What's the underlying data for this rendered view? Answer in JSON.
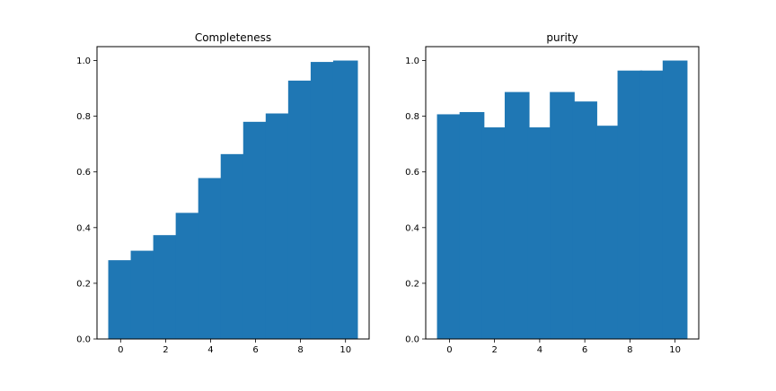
{
  "chart_data": [
    {
      "type": "bar",
      "title": "Completeness",
      "xlabel": "",
      "ylabel": "",
      "x": [
        0,
        1,
        2,
        3,
        4,
        5,
        6,
        7,
        8,
        9,
        10
      ],
      "values": [
        0.283,
        0.317,
        0.373,
        0.453,
        0.578,
        0.664,
        0.78,
        0.81,
        0.928,
        0.995,
        1.0
      ],
      "bar_width": 1.1,
      "xlim": [
        -1.05,
        11.05
      ],
      "ylim": [
        0,
        1.05
      ],
      "xticks": [
        0,
        2,
        4,
        6,
        8,
        10
      ],
      "xtick_labels": [
        "0",
        "2",
        "4",
        "6",
        "8",
        "10"
      ],
      "yticks": [
        0.0,
        0.2,
        0.4,
        0.6,
        0.8,
        1.0
      ],
      "ytick_labels": [
        "0.0",
        "0.2",
        "0.4",
        "0.6",
        "0.8",
        "1.0"
      ],
      "color": "#1f77b4",
      "grid": false
    },
    {
      "type": "bar",
      "title": "purity",
      "xlabel": "",
      "ylabel": "",
      "x": [
        0,
        1,
        2,
        3,
        4,
        5,
        6,
        7,
        8,
        9,
        10
      ],
      "values": [
        0.807,
        0.815,
        0.76,
        0.887,
        0.76,
        0.887,
        0.853,
        0.766,
        0.964,
        0.964,
        1.0
      ],
      "bar_width": 1.1,
      "xlim": [
        -1.05,
        11.05
      ],
      "ylim": [
        0,
        1.05
      ],
      "xticks": [
        0,
        2,
        4,
        6,
        8,
        10
      ],
      "xtick_labels": [
        "0",
        "2",
        "4",
        "6",
        "8",
        "10"
      ],
      "yticks": [
        0.0,
        0.2,
        0.4,
        0.6,
        0.8,
        1.0
      ],
      "ytick_labels": [
        "0.0",
        "0.2",
        "0.4",
        "0.6",
        "0.8",
        "1.0"
      ],
      "color": "#1f77b4",
      "grid": false
    }
  ]
}
